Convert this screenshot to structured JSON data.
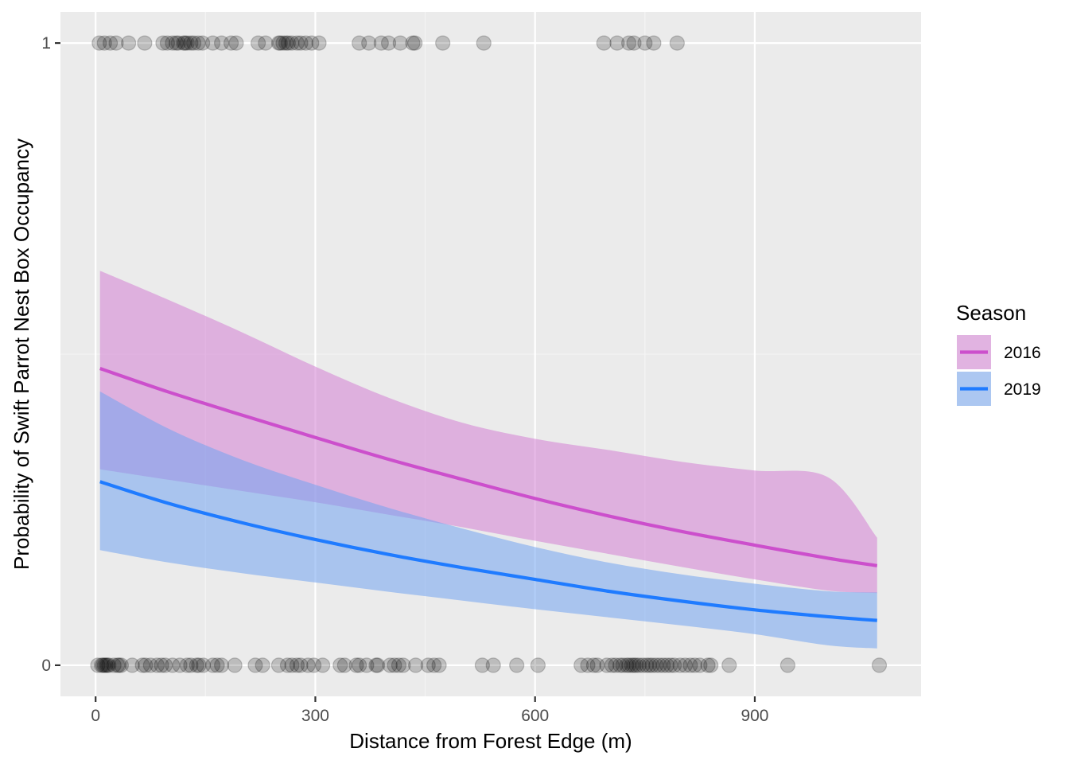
{
  "chart_data": {
    "type": "line",
    "xlabel": "Distance from Forest Edge (m)",
    "ylabel": "Probability of Swift Parrot Nest Box Occupancy",
    "xlim": [
      -48,
      1127
    ],
    "ylim": [
      -0.05,
      1.05
    ],
    "x_ticks": [
      0,
      300,
      600,
      900
    ],
    "y_ticks": [
      0,
      1
    ],
    "x_tick_labels": [
      "0",
      "300",
      "600",
      "900"
    ],
    "y_tick_labels": [
      "0",
      "1"
    ],
    "grid": true,
    "legend": {
      "title": "Season",
      "position": "right",
      "entries": [
        "2016",
        "2019"
      ]
    },
    "series": [
      {
        "name": "2016",
        "color": "#cc4fcc",
        "ribbon_color": "#d47fd4",
        "x": [
          6,
          100,
          200,
          300,
          400,
          500,
          600,
          700,
          800,
          900,
          1000,
          1067
        ],
        "y": [
          0.477,
          0.439,
          0.402,
          0.366,
          0.331,
          0.299,
          0.268,
          0.24,
          0.215,
          0.193,
          0.172,
          0.16
        ],
        "lower": [
          0.315,
          0.298,
          0.28,
          0.262,
          0.242,
          0.222,
          0.2,
          0.179,
          0.158,
          0.138,
          0.12,
          0.116
        ],
        "upper": [
          0.634,
          0.587,
          0.535,
          0.48,
          0.43,
          0.39,
          0.364,
          0.346,
          0.327,
          0.313,
          0.302,
          0.205
        ]
      },
      {
        "name": "2019",
        "color": "#1f7bff",
        "ribbon_color": "#72a4f0",
        "x": [
          6,
          100,
          200,
          300,
          400,
          500,
          600,
          700,
          800,
          900,
          1000,
          1067
        ],
        "y": [
          0.295,
          0.26,
          0.229,
          0.202,
          0.178,
          0.157,
          0.138,
          0.119,
          0.103,
          0.089,
          0.078,
          0.072
        ],
        "lower": [
          0.185,
          0.165,
          0.148,
          0.133,
          0.118,
          0.104,
          0.09,
          0.077,
          0.064,
          0.05,
          0.032,
          0.027
        ],
        "upper": [
          0.44,
          0.38,
          0.33,
          0.29,
          0.253,
          0.22,
          0.19,
          0.165,
          0.146,
          0.131,
          0.119,
          0.117
        ]
      }
    ],
    "points": {
      "color": "#000000",
      "opacity": 0.2,
      "occupied_1": [
        5,
        12,
        20,
        28,
        45,
        67,
        92,
        98,
        105,
        110,
        113,
        120,
        122,
        125,
        130,
        134,
        140,
        146,
        160,
        172,
        185,
        192,
        222,
        232,
        250,
        252,
        256,
        260,
        263,
        268,
        275,
        280,
        287,
        295,
        305,
        360,
        373,
        390,
        400,
        416,
        433,
        436,
        474,
        530,
        694,
        712,
        728,
        735,
        750,
        762,
        794
      ],
      "occupied_0": [
        3,
        8,
        10,
        12,
        14,
        16,
        18,
        25,
        30,
        32,
        35,
        50,
        64,
        68,
        75,
        84,
        90,
        95,
        105,
        115,
        125,
        130,
        138,
        141,
        147,
        160,
        166,
        172,
        190,
        218,
        228,
        250,
        262,
        268,
        275,
        280,
        290,
        298,
        310,
        334,
        340,
        356,
        360,
        370,
        383,
        385,
        402,
        408,
        414,
        420,
        437,
        454,
        462,
        469,
        528,
        543,
        575,
        604,
        663,
        672,
        680,
        685,
        698,
        705,
        710,
        716,
        720,
        725,
        728,
        732,
        735,
        738,
        742,
        747,
        752,
        756,
        760,
        765,
        770,
        775,
        780,
        785,
        790,
        798,
        805,
        812,
        818,
        825,
        836,
        840,
        865,
        945,
        1070
      ]
    },
    "colors": {
      "panel": "#ebebeb",
      "grid_major": "#ffffff",
      "grid_minor": "#f5f5f5",
      "tick_text": "#4d4d4d"
    }
  }
}
